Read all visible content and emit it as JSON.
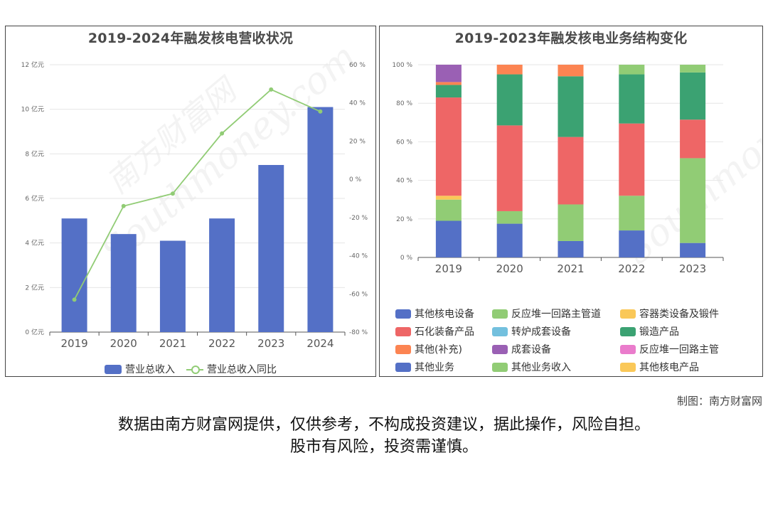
{
  "left_chart": {
    "title": "2019-2024年融发核电营收状况",
    "y_left_ticks": [
      "0 亿元",
      "2 亿元",
      "4 亿元",
      "6 亿元",
      "8 亿元",
      "10 亿元",
      "12 亿元"
    ],
    "y_right_ticks": [
      "-80 %",
      "-60 %",
      "-40 %",
      "-20 %",
      "0 %",
      "20 %",
      "40 %",
      "60 %"
    ],
    "legend": {
      "bar": "营业总收入",
      "line": "营业总收入同比"
    },
    "colors": {
      "bar": "#5470c6",
      "line": "#91cc75"
    }
  },
  "right_chart": {
    "title": "2019-2023年融发核电业务结构变化",
    "y_ticks": [
      "0 %",
      "20 %",
      "40 %",
      "60 %",
      "80 %",
      "100 %"
    ],
    "legend": [
      {
        "name": "其他核电设备",
        "color": "#5470c6"
      },
      {
        "name": "反应堆一回路主管道",
        "color": "#91cc75"
      },
      {
        "name": "容器类设备及锻件",
        "color": "#fac858"
      },
      {
        "name": "石化装备产品",
        "color": "#ee6666"
      },
      {
        "name": "转炉成套设备",
        "color": "#73c0de"
      },
      {
        "name": "锻造产品",
        "color": "#3ba272"
      },
      {
        "name": "其他(补充)",
        "color": "#fc8452"
      },
      {
        "name": "成套设备",
        "color": "#9a60b4"
      },
      {
        "name": "反应堆一回路主管",
        "color": "#ea7ccc"
      },
      {
        "name": "其他业务",
        "color": "#5470c6"
      },
      {
        "name": "其他业务收入",
        "color": "#91cc75"
      },
      {
        "name": "其他核电产品",
        "color": "#fac858"
      }
    ]
  },
  "chart_data": [
    {
      "type": "bar",
      "title": "2019-2024年融发核电营收状况",
      "categories": [
        "2019",
        "2020",
        "2021",
        "2022",
        "2023",
        "2024"
      ],
      "series": [
        {
          "name": "营业总收入",
          "type": "bar",
          "axis": "left",
          "unit": "亿元",
          "values": [
            5.1,
            4.4,
            4.1,
            5.1,
            7.5,
            10.1
          ]
        },
        {
          "name": "营业总收入同比",
          "type": "line",
          "axis": "right",
          "unit": "%",
          "values": [
            -63,
            -14,
            -7.5,
            24,
            47,
            35.5
          ]
        }
      ],
      "ylim_left": [
        0,
        12
      ],
      "ylim_right": [
        -80,
        60
      ],
      "grid": true,
      "legend_position": "bottom"
    },
    {
      "type": "bar",
      "stacked": true,
      "title": "2019-2023年融发核电业务结构变化",
      "categories": [
        "2019",
        "2020",
        "2021",
        "2022",
        "2023"
      ],
      "ylim": [
        0,
        100
      ],
      "unit": "%",
      "legend_position": "bottom",
      "segments": [
        [
          {
            "name": "其他核电设备",
            "value": 19,
            "color": "#5470c6"
          },
          {
            "name": "反应堆一回路主管道",
            "value": 11,
            "color": "#91cc75"
          },
          {
            "name": "容器类设备及锻件",
            "value": 2,
            "color": "#fac858"
          },
          {
            "name": "石化装备产品",
            "value": 51,
            "color": "#ee6666"
          },
          {
            "name": "锻造产品",
            "value": 6.5,
            "color": "#3ba272"
          },
          {
            "name": "其他(补充)",
            "value": 1.5,
            "color": "#fc8452"
          },
          {
            "name": "成套设备",
            "value": 9,
            "color": "#9a60b4"
          }
        ],
        [
          {
            "name": "其他核电设备",
            "value": 17.5,
            "color": "#5470c6"
          },
          {
            "name": "反应堆一回路主管道",
            "value": 6.5,
            "color": "#91cc75"
          },
          {
            "name": "石化装备产品",
            "value": 44.5,
            "color": "#ee6666"
          },
          {
            "name": "锻造产品",
            "value": 26.5,
            "color": "#3ba272"
          },
          {
            "name": "其他(补充)",
            "value": 5,
            "color": "#fc8452"
          }
        ],
        [
          {
            "name": "其他核电设备",
            "value": 8.5,
            "color": "#5470c6"
          },
          {
            "name": "反应堆一回路主管道",
            "value": 19,
            "color": "#91cc75"
          },
          {
            "name": "石化装备产品",
            "value": 35,
            "color": "#ee6666"
          },
          {
            "name": "锻造产品",
            "value": 31.5,
            "color": "#3ba272"
          },
          {
            "name": "其他(补充)",
            "value": 6,
            "color": "#fc8452"
          }
        ],
        [
          {
            "name": "其他业务",
            "value": 14,
            "color": "#5470c6"
          },
          {
            "name": "反应堆一回路主管道",
            "value": 18,
            "color": "#91cc75"
          },
          {
            "name": "石化装备产品",
            "value": 37.5,
            "color": "#ee6666"
          },
          {
            "name": "锻造产品",
            "value": 25.5,
            "color": "#3ba272"
          },
          {
            "name": "其他业务收入",
            "value": 5,
            "color": "#91cc75"
          }
        ],
        [
          {
            "name": "其他业务",
            "value": 7.5,
            "color": "#5470c6"
          },
          {
            "name": "其他业务收入",
            "value": 44,
            "color": "#91cc75"
          },
          {
            "name": "石化装备产品",
            "value": 20,
            "color": "#ee6666"
          },
          {
            "name": "锻造产品",
            "value": 24.5,
            "color": "#3ba272"
          },
          {
            "name": "其他业务收入",
            "value": 4,
            "color": "#91cc75"
          }
        ]
      ]
    }
  ],
  "credit": "制图：南方财富网",
  "disclaimer": [
    "数据由南方财富网提供，仅供参考，不构成投资建议，据此操作，风险自担。",
    "股市有风险，投资需谨慎。"
  ],
  "watermark": {
    "cn": "南方财富网",
    "en": "Southmoney.com"
  }
}
